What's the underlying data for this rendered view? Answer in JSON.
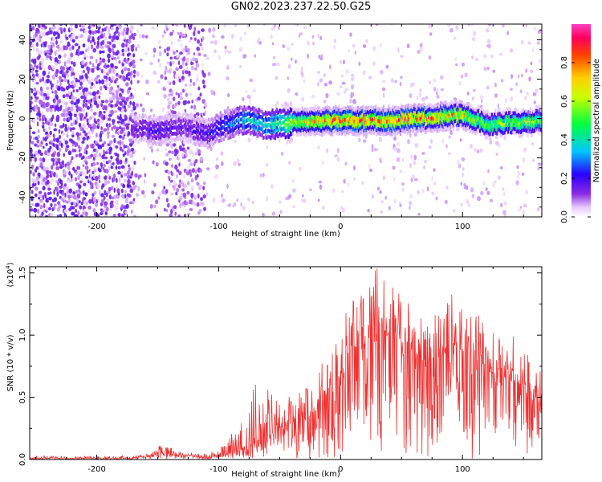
{
  "figure": {
    "title": "GN02.2023.237.22.50.G25"
  },
  "chart_data": [
    {
      "type": "heatmap",
      "xlabel": "Height of straight line (km)",
      "ylabel": "Frequency (Hz)",
      "xlim": [
        -255,
        165
      ],
      "ylim": [
        -50,
        48
      ],
      "xticks": [
        -200,
        -100,
        0,
        100
      ],
      "yticks": [
        -40,
        -20,
        0,
        20,
        40
      ],
      "xtick_labels": [
        "-200",
        "-100",
        "0",
        "100"
      ],
      "ytick_labels": [
        "-40",
        "-20",
        "0",
        "20",
        "40"
      ],
      "grid": false,
      "colorbar": {
        "label": "Normalized spectral amplitude",
        "range": [
          0.0,
          1.0
        ],
        "ticks": [
          0.0,
          0.2,
          0.4,
          0.6,
          0.8
        ],
        "tick_labels": [
          "0.0",
          "0.2",
          "0.4",
          "0.6",
          "0.8"
        ],
        "colormap": "rainbow (white-violet-blue-cyan-green-yellow-orange-red-magenta)"
      },
      "ridge": {
        "description_values_height_km": [
          -170,
          -150,
          -130,
          -110,
          -100,
          -80,
          -60,
          -40,
          -20,
          0,
          20,
          40,
          60,
          80,
          100,
          120,
          140,
          165
        ],
        "frequency_hz": [
          -5,
          -6,
          -4,
          -8,
          -4,
          -1,
          -3,
          -2,
          -1,
          -1,
          -1,
          -1,
          0,
          1,
          2,
          -3,
          -2,
          -1
        ],
        "amplitude": [
          0.15,
          0.2,
          0.15,
          0.2,
          0.25,
          0.35,
          0.4,
          0.6,
          0.75,
          0.85,
          0.8,
          0.8,
          0.85,
          0.75,
          0.7,
          0.55,
          0.6,
          0.55
        ]
      }
    },
    {
      "type": "line",
      "xlabel": "Height of straight line (km)",
      "ylabel": "SNR (10 * v/v)",
      "y_multiplier_label": "(x10",
      "y_multiplier_exp": "4",
      "xlim": [
        -255,
        165
      ],
      "ylim": [
        0.0,
        1.55
      ],
      "xticks": [
        -200,
        -100,
        0,
        100
      ],
      "yticks": [
        0.0,
        0.5,
        1.0,
        1.5
      ],
      "xtick_labels": [
        "-200",
        "-100",
        "0",
        "100"
      ],
      "ytick_labels": [
        "0.0",
        "0.5",
        "1.0",
        "1.5"
      ],
      "grid": false,
      "color": "#f03030",
      "series": [
        {
          "x": [
            -255,
            -230,
            -200,
            -180,
            -160,
            -150,
            -140,
            -130,
            -120,
            -110,
            -100,
            -90,
            -80,
            -70,
            -60,
            -50,
            -40,
            -30,
            -20,
            -10,
            0,
            10,
            20,
            30,
            40,
            50,
            60,
            70,
            80,
            90,
            100,
            110,
            120,
            130,
            140,
            150,
            165
          ],
          "y": [
            0.01,
            0.01,
            0.01,
            0.01,
            0.02,
            0.05,
            0.04,
            0.03,
            0.02,
            0.02,
            0.03,
            0.05,
            0.08,
            0.13,
            0.18,
            0.22,
            0.26,
            0.33,
            0.38,
            0.5,
            0.7,
            0.85,
            0.92,
            0.95,
            0.98,
            0.95,
            0.85,
            0.78,
            0.8,
            0.85,
            0.82,
            0.75,
            0.7,
            0.68,
            0.62,
            0.55,
            0.5
          ],
          "peak_y": [
            0.03,
            0.03,
            0.03,
            0.03,
            0.04,
            0.12,
            0.1,
            0.07,
            0.05,
            0.05,
            0.08,
            0.2,
            0.4,
            0.62,
            0.6,
            0.62,
            0.58,
            0.55,
            0.68,
            0.9,
            1.15,
            1.3,
            1.38,
            1.55,
            1.45,
            1.35,
            1.2,
            1.12,
            1.25,
            1.35,
            1.3,
            1.2,
            1.12,
            1.05,
            1.0,
            0.95,
            0.9
          ]
        }
      ]
    }
  ]
}
